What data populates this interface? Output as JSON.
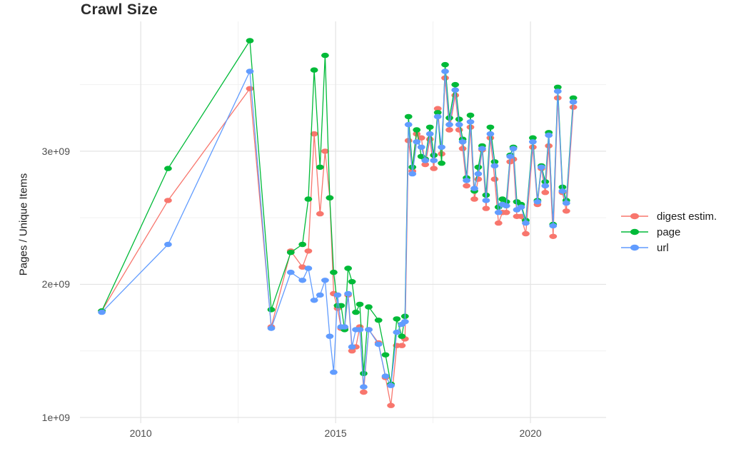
{
  "chart_data": {
    "type": "line",
    "title": "Crawl Size",
    "xlabel": "",
    "ylabel": "Pages / Unique Items",
    "values_unit": "1e9 (billions)",
    "grid": true,
    "legend_position": "right",
    "x_range": [
      2008.44,
      2021.94
    ],
    "y_range": [
      0.957,
      3.975
    ],
    "x_major_ticks": [
      {
        "value": 2010,
        "label": "2010"
      },
      {
        "value": 2015,
        "label": "2015"
      },
      {
        "value": 2020,
        "label": "2020"
      }
    ],
    "x_minor_ticks": [
      2012.5,
      2017.5
    ],
    "y_major_ticks": [
      {
        "value": 1,
        "label": "1e+09"
      },
      {
        "value": 2,
        "label": "2e+09"
      },
      {
        "value": 3,
        "label": "3e+09"
      }
    ],
    "y_minor_ticks": [
      1.5,
      2.5,
      3.5
    ],
    "x": [
      2009.0,
      2010.7,
      2012.8,
      2013.35,
      2013.85,
      2014.15,
      2014.3,
      2014.45,
      2014.6,
      2014.73,
      2014.85,
      2014.95,
      2015.05,
      2015.14,
      2015.23,
      2015.32,
      2015.42,
      2015.52,
      2015.62,
      2015.72,
      2015.85,
      2016.1,
      2016.28,
      2016.42,
      2016.57,
      2016.7,
      2016.78,
      2016.87,
      2016.97,
      2017.08,
      2017.2,
      2017.3,
      2017.42,
      2017.52,
      2017.62,
      2017.72,
      2017.81,
      2017.92,
      2018.07,
      2018.17,
      2018.26,
      2018.36,
      2018.46,
      2018.56,
      2018.66,
      2018.76,
      2018.86,
      2018.97,
      2019.08,
      2019.18,
      2019.28,
      2019.38,
      2019.48,
      2019.56,
      2019.65,
      2019.76,
      2019.88,
      2020.06,
      2020.18,
      2020.28,
      2020.38,
      2020.47,
      2020.58,
      2020.7,
      2020.82,
      2020.92,
      2021.1
    ],
    "series": [
      {
        "name": "digest estim.",
        "color": "#F8766D",
        "values": [
          1.8,
          2.63,
          3.47,
          1.68,
          2.25,
          2.13,
          2.25,
          3.13,
          2.53,
          3.0,
          2.65,
          1.93,
          1.82,
          1.67,
          1.67,
          1.92,
          1.5,
          1.53,
          1.68,
          1.19,
          1.66,
          1.56,
          1.3,
          1.09,
          1.54,
          1.54,
          1.59,
          3.08,
          2.85,
          3.13,
          3.1,
          2.9,
          3.09,
          2.87,
          3.32,
          2.98,
          3.55,
          3.16,
          3.42,
          3.16,
          3.02,
          2.74,
          3.18,
          2.64,
          2.79,
          3.01,
          2.57,
          3.1,
          2.79,
          2.46,
          2.54,
          2.54,
          2.92,
          2.94,
          2.51,
          2.51,
          2.38,
          3.03,
          2.6,
          2.87,
          2.69,
          3.04,
          2.36,
          3.4,
          2.69,
          2.55,
          3.33
        ]
      },
      {
        "name": "page",
        "color": "#00BA38",
        "values": [
          1.8,
          2.87,
          3.83,
          1.81,
          2.24,
          2.3,
          2.64,
          3.61,
          2.88,
          3.72,
          2.65,
          2.09,
          1.84,
          1.84,
          1.66,
          2.12,
          2.02,
          1.79,
          1.85,
          1.33,
          1.83,
          1.73,
          1.47,
          1.25,
          1.74,
          1.61,
          1.76,
          3.26,
          2.88,
          3.16,
          2.96,
          2.94,
          3.18,
          2.97,
          3.29,
          2.91,
          3.65,
          3.25,
          3.5,
          3.24,
          3.09,
          2.8,
          3.27,
          2.7,
          2.88,
          3.04,
          2.67,
          3.18,
          2.92,
          2.58,
          2.64,
          2.62,
          2.97,
          3.03,
          2.62,
          2.6,
          2.48,
          3.1,
          2.63,
          2.89,
          2.77,
          3.14,
          2.45,
          3.48,
          2.73,
          2.63,
          3.4
        ]
      },
      {
        "name": "url",
        "color": "#619CFF",
        "values": [
          1.79,
          2.3,
          3.6,
          1.67,
          2.09,
          2.03,
          2.12,
          1.88,
          1.92,
          2.03,
          1.61,
          1.34,
          1.92,
          1.68,
          1.68,
          1.93,
          1.53,
          1.66,
          1.66,
          1.23,
          1.66,
          1.55,
          1.31,
          1.24,
          1.64,
          1.7,
          1.72,
          3.2,
          2.83,
          3.07,
          3.03,
          2.93,
          3.13,
          2.93,
          3.26,
          3.03,
          3.6,
          3.2,
          3.46,
          3.2,
          3.07,
          2.78,
          3.22,
          2.72,
          2.83,
          3.02,
          2.63,
          3.13,
          2.89,
          2.54,
          2.6,
          2.59,
          2.96,
          3.02,
          2.56,
          2.58,
          2.46,
          3.07,
          2.62,
          2.88,
          2.74,
          3.12,
          2.44,
          3.45,
          2.7,
          2.61,
          3.37
        ]
      }
    ],
    "style": {
      "background": "#ffffff",
      "grid_major_color": "#e3e3e3",
      "grid_minor_color": "#f1f1f1",
      "tick_label_color": "#4d4d4d",
      "title_color": "#2b2b2b",
      "axis_title_color": "#1a1a1a",
      "legend_text_color": "#1a1a1a"
    }
  }
}
